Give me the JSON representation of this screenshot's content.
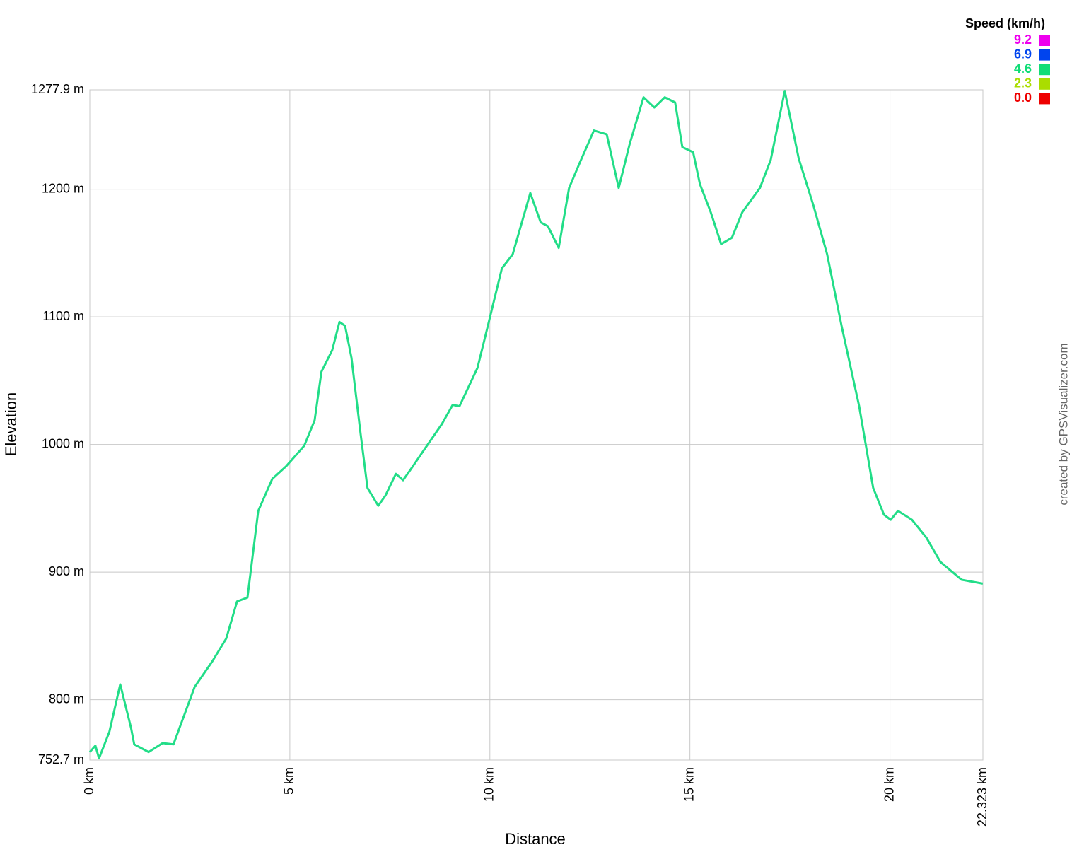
{
  "chart_data": {
    "type": "line",
    "y_label": "Elevation",
    "x_label": "Distance",
    "watermark": "created by GPSVisualizer.com",
    "xlim": [
      0,
      22.323
    ],
    "ylim": [
      752.7,
      1277.9
    ],
    "xticks": [
      {
        "value": 0,
        "label": "0 km"
      },
      {
        "value": 5,
        "label": "5 km"
      },
      {
        "value": 10,
        "label": "10 km"
      },
      {
        "value": 15,
        "label": "15 km"
      },
      {
        "value": 20,
        "label": "20 km"
      },
      {
        "value": 22.323,
        "label": "22.323 km"
      }
    ],
    "yticks": [
      {
        "value": 752.7,
        "label": "752.7 m"
      },
      {
        "value": 800,
        "label": "800 m"
      },
      {
        "value": 900,
        "label": "900 m"
      },
      {
        "value": 1000,
        "label": "1000 m"
      },
      {
        "value": 1100,
        "label": "1100 m"
      },
      {
        "value": 1200,
        "label": "1200 m"
      },
      {
        "value": 1277.9,
        "label": "1277.9 m"
      }
    ],
    "grid": true,
    "color_scale": {
      "title": "Speed (km/h)",
      "stops": [
        {
          "value": 9.2,
          "color": "#ee00ee"
        },
        {
          "value": 6.9,
          "color": "#0044ee"
        },
        {
          "value": 4.6,
          "color": "#11dd77"
        },
        {
          "value": 2.3,
          "color": "#aadd00"
        },
        {
          "value": 0,
          "label": "0.0",
          "color": "#ee0000"
        }
      ]
    },
    "x": [
      0,
      0.14,
      0.23,
      0.49,
      0.76,
      1.03,
      1.11,
      1.47,
      1.82,
      2.09,
      2.62,
      3.06,
      3.41,
      3.68,
      3.94,
      4.21,
      4.56,
      4.91,
      5.36,
      5.62,
      5.79,
      6.06,
      6.24,
      6.38,
      6.54,
      6.77,
      6.94,
      7.21,
      7.39,
      7.65,
      7.83,
      8.01,
      8.36,
      8.8,
      9.07,
      9.24,
      9.69,
      9.95,
      10.3,
      10.57,
      11.01,
      11.27,
      11.45,
      11.72,
      11.98,
      12.25,
      12.6,
      12.92,
      13.22,
      13.49,
      13.84,
      14.11,
      14.37,
      14.63,
      14.81,
      15.08,
      15.25,
      15.52,
      15.78,
      16.05,
      16.31,
      16.75,
      17.02,
      17.37,
      17.72,
      18.08,
      18.43,
      18.79,
      19.23,
      19.58,
      19.85,
      20.02,
      20.2,
      20.55,
      20.91,
      21.26,
      21.79,
      22.32
    ],
    "series": [
      {
        "name": "Elevation",
        "color": "#22dd88",
        "values": [
          759,
          764,
          754,
          775,
          812,
          778,
          765,
          759,
          766,
          765,
          810,
          830,
          848,
          877,
          880,
          948,
          973,
          983,
          999,
          1019,
          1057,
          1074,
          1096,
          1093,
          1068,
          1008,
          966,
          952,
          960,
          977,
          972,
          980,
          996,
          1016,
          1031,
          1030,
          1060,
          1093,
          1138,
          1149,
          1197,
          1174,
          1171,
          1154,
          1201,
          1221,
          1246,
          1243,
          1201,
          1235,
          1272,
          1264,
          1272,
          1268,
          1233,
          1229,
          1204,
          1182,
          1157,
          1162,
          1182,
          1201,
          1223,
          1277,
          1224,
          1188,
          1149,
          1093,
          1030,
          966,
          945,
          941,
          948,
          941,
          927,
          908,
          894,
          891
        ]
      }
    ]
  }
}
